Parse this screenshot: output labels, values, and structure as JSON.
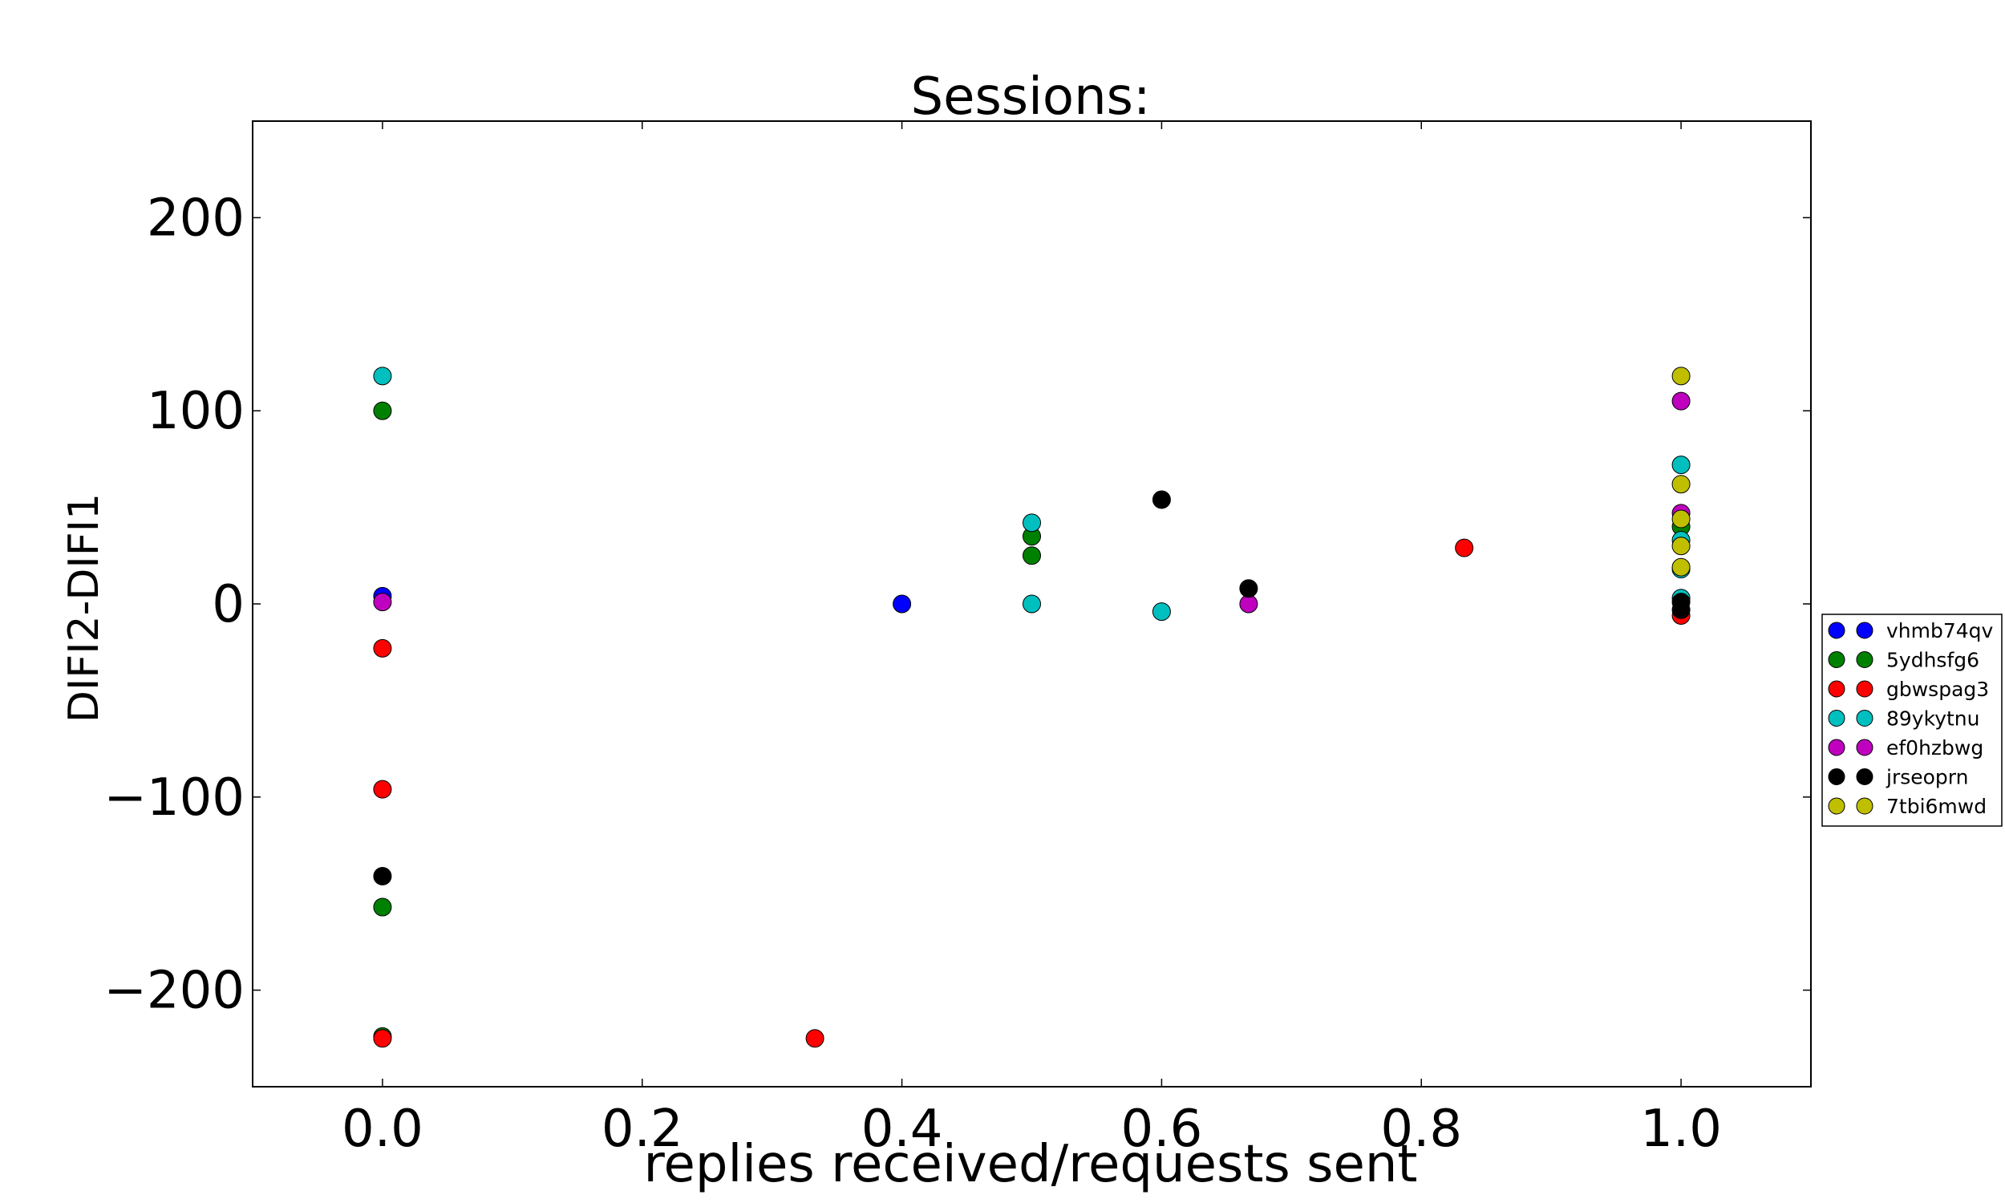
{
  "chart_data": {
    "type": "scatter",
    "title": "Sessions:",
    "xlabel": "replies received/requests sent",
    "ylabel": "DIFI2-DIFI1",
    "xlim": [
      -0.1,
      1.1
    ],
    "ylim": [
      -250,
      250
    ],
    "x_ticks": [
      0.0,
      0.2,
      0.4,
      0.6,
      0.8,
      1.0
    ],
    "x_tick_labels": [
      "0.0",
      "0.2",
      "0.4",
      "0.6",
      "0.8",
      "1.0"
    ],
    "y_ticks": [
      -200,
      -100,
      0,
      100,
      200
    ],
    "y_tick_labels": [
      "−200",
      "−100",
      "0",
      "100",
      "200"
    ],
    "grid": false,
    "legend_position": "outside right",
    "series": [
      {
        "name": "vhmb74qv",
        "color": "#0000ff",
        "points": [
          [
            0.0,
            4
          ],
          [
            0.4,
            0
          ]
        ]
      },
      {
        "name": "5ydhsfg6",
        "color": "#008000",
        "points": [
          [
            0.0,
            100
          ],
          [
            0.0,
            -157
          ],
          [
            0.0,
            -224
          ],
          [
            0.5,
            35
          ],
          [
            0.5,
            25
          ],
          [
            1.0,
            40
          ]
        ]
      },
      {
        "name": "gbwspag3",
        "color": "#ff0000",
        "points": [
          [
            0.0,
            -23
          ],
          [
            0.0,
            -96
          ],
          [
            0.0,
            -225
          ],
          [
            0.333,
            -225
          ],
          [
            0.833,
            29
          ],
          [
            1.0,
            -6
          ]
        ]
      },
      {
        "name": "89ykytnu",
        "color": "#00bfbf",
        "points": [
          [
            0.0,
            118
          ],
          [
            0.5,
            42
          ],
          [
            0.5,
            0
          ],
          [
            0.6,
            -4
          ],
          [
            1.0,
            72
          ],
          [
            1.0,
            33
          ],
          [
            1.0,
            18
          ],
          [
            1.0,
            3
          ]
        ]
      },
      {
        "name": "ef0hzbwg",
        "color": "#bf00bf",
        "points": [
          [
            0.0,
            1
          ],
          [
            0.667,
            0
          ],
          [
            1.0,
            105
          ],
          [
            1.0,
            47
          ]
        ]
      },
      {
        "name": "jrseoprn",
        "color": "#000000",
        "points": [
          [
            0.0,
            -141
          ],
          [
            0.6,
            54
          ],
          [
            0.667,
            8
          ],
          [
            1.0,
            1
          ],
          [
            1.0,
            -3
          ]
        ]
      },
      {
        "name": "7tbi6mwd",
        "color": "#bfbf00",
        "points": [
          [
            1.0,
            118
          ],
          [
            1.0,
            62
          ],
          [
            1.0,
            44
          ],
          [
            1.0,
            30
          ],
          [
            1.0,
            19
          ]
        ]
      }
    ]
  }
}
